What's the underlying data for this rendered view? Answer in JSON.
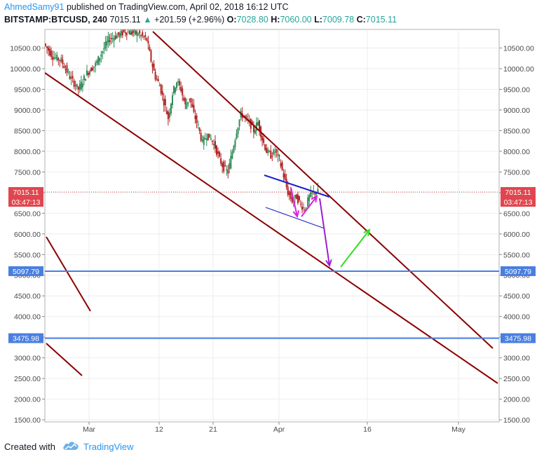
{
  "header": {
    "author": "AhmedSamy91",
    "published_text": "published on TradingView.com, April 02, 2018 16:12 UTC",
    "symbol": "BITSTAMP:BTCUSD, 240",
    "last": "7015.11",
    "change": "+201.59 (+2.96%)",
    "o_label": "O:",
    "o_value": "7028.80",
    "h_label": "H:",
    "h_value": "7060.00",
    "l_label": "L:",
    "l_value": "7009.78",
    "c_label": "C:",
    "c_value": "7015.11"
  },
  "footer": {
    "created_with": "Created with",
    "brand": "TradingView"
  },
  "colors": {
    "channel": "#8b0000",
    "support": "#4a7fe0",
    "pennant": "#1a1acc",
    "magenta": "#e020e0",
    "purple": "#9a20d0",
    "green": "#33dd22",
    "price_line": "#e0464f",
    "candle_up": "#2e8b57",
    "candle_down": "#b22222"
  },
  "chart_data": {
    "type": "candlestick",
    "x_ticks": [
      "Mar",
      "12",
      "21",
      "Apr",
      "16",
      "May"
    ],
    "y_ticks": [
      "10500.00",
      "10000.00",
      "9500.00",
      "9000.00",
      "8500.00",
      "8000.00",
      "7500.00",
      "7000.00",
      "6500.00",
      "6000.00",
      "5500.00",
      "5000.00",
      "4500.00",
      "4000.00",
      "3500.00",
      "3000.00",
      "2500.00",
      "2000.00",
      "1500.00"
    ],
    "ylim": [
      1450,
      10950
    ],
    "current_price": {
      "label": "7015.11",
      "countdown": "03:47:13",
      "value": 7015.11
    },
    "horizontal_levels": [
      {
        "label": "5097.79",
        "value": 5097.79
      },
      {
        "label": "3475.98",
        "value": 3475.98
      }
    ],
    "price_path": [
      [
        0,
        10600
      ],
      [
        4,
        10300
      ],
      [
        8,
        10200
      ],
      [
        12,
        9800
      ],
      [
        16,
        9500
      ],
      [
        20,
        9900
      ],
      [
        24,
        10100
      ],
      [
        28,
        10500
      ],
      [
        30,
        10700
      ],
      [
        34,
        10800
      ],
      [
        38,
        10900
      ],
      [
        44,
        10850
      ],
      [
        48,
        10700
      ],
      [
        50,
        10200
      ],
      [
        52,
        9800
      ],
      [
        54,
        9600
      ],
      [
        56,
        9200
      ],
      [
        58,
        8800
      ],
      [
        60,
        9400
      ],
      [
        62,
        9700
      ],
      [
        64,
        9500
      ],
      [
        66,
        9100
      ],
      [
        68,
        9300
      ],
      [
        70,
        8900
      ],
      [
        72,
        8600
      ],
      [
        74,
        8200
      ],
      [
        76,
        8400
      ],
      [
        78,
        8300
      ],
      [
        80,
        8100
      ],
      [
        82,
        7800
      ],
      [
        84,
        7600
      ],
      [
        86,
        7500
      ],
      [
        88,
        8000
      ],
      [
        90,
        8500
      ],
      [
        92,
        8900
      ],
      [
        94,
        8800
      ],
      [
        96,
        8700
      ],
      [
        98,
        8500
      ],
      [
        100,
        8700
      ],
      [
        102,
        8300
      ],
      [
        104,
        8000
      ],
      [
        106,
        7900
      ],
      [
        108,
        8000
      ],
      [
        110,
        7800
      ],
      [
        112,
        7400
      ],
      [
        114,
        7000
      ],
      [
        116,
        6800
      ],
      [
        118,
        6900
      ],
      [
        120,
        6700
      ],
      [
        122,
        6600
      ],
      [
        124,
        6900
      ],
      [
        126,
        7000
      ],
      [
        128,
        7015
      ]
    ],
    "drawings": {
      "channel_upper": [
        [
          0,
          11000
        ],
        [
          196,
          3200
        ]
      ],
      "channel_lower": [
        [
          0,
          9800
        ],
        [
          196,
          2350
        ]
      ],
      "channel_frag1": [
        [
          0,
          5900
        ],
        [
          20,
          4050
        ]
      ],
      "channel_frag2": [
        [
          0,
          3300
        ],
        [
          17,
          2500
        ]
      ]
    }
  }
}
